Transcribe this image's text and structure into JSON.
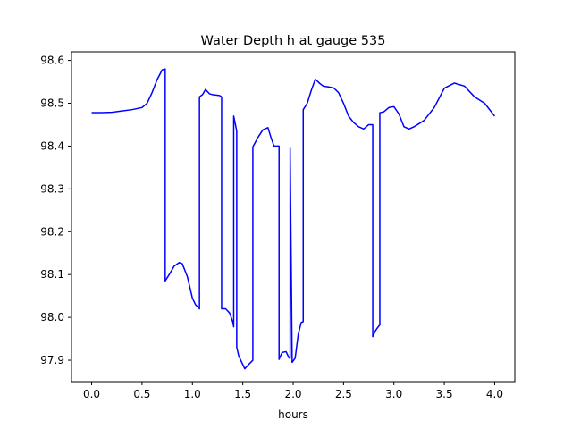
{
  "chart_data": {
    "type": "line",
    "title": "Water Depth h at gauge 535",
    "xlabel": "hours",
    "ylabel": "",
    "xlim": [
      -0.2,
      4.2
    ],
    "ylim": [
      97.85,
      98.62
    ],
    "x_ticks": [
      0.0,
      0.5,
      1.0,
      1.5,
      2.0,
      2.5,
      3.0,
      3.5,
      4.0
    ],
    "x_tick_labels": [
      "0.0",
      "0.5",
      "1.0",
      "1.5",
      "2.0",
      "2.5",
      "3.0",
      "3.5",
      "4.0"
    ],
    "y_ticks": [
      97.9,
      98.0,
      98.1,
      98.2,
      98.3,
      98.4,
      98.5,
      98.6
    ],
    "y_tick_labels": [
      "97.9",
      "98.0",
      "98.1",
      "98.2",
      "98.3",
      "98.4",
      "98.5",
      "98.6"
    ],
    "grid": false,
    "color": "#0000ff",
    "series": [
      {
        "x": [
          0.0,
          0.1,
          0.2,
          0.3,
          0.4,
          0.5,
          0.55,
          0.6,
          0.65,
          0.7,
          0.73,
          0.73,
          0.77,
          0.82,
          0.87,
          0.9,
          0.95,
          1.0,
          1.03,
          1.07,
          1.07,
          1.1,
          1.13,
          1.17,
          1.2,
          1.27,
          1.29,
          1.29,
          1.33,
          1.37,
          1.4,
          1.41,
          1.41,
          1.44,
          1.44,
          1.46,
          1.49,
          1.52,
          1.55,
          1.6,
          1.6,
          1.65,
          1.7,
          1.75,
          1.78,
          1.81,
          1.84,
          1.86,
          1.86,
          1.89,
          1.93,
          1.96,
          1.97,
          1.97,
          1.99,
          2.02,
          2.05,
          2.08,
          2.1,
          2.1,
          2.14,
          2.18,
          2.22,
          2.27,
          2.3,
          2.35,
          2.4,
          2.45,
          2.5,
          2.55,
          2.6,
          2.65,
          2.7,
          2.75,
          2.78,
          2.79,
          2.79,
          2.82,
          2.85,
          2.86,
          2.86,
          2.9,
          2.95,
          3.0,
          3.05,
          3.1,
          3.15,
          3.2,
          3.3,
          3.4,
          3.5,
          3.6,
          3.7,
          3.8,
          3.9,
          4.0
        ],
        "y": [
          98.478,
          98.478,
          98.479,
          98.482,
          98.485,
          98.49,
          98.5,
          98.525,
          98.555,
          98.578,
          98.58,
          98.085,
          98.1,
          98.12,
          98.128,
          98.125,
          98.095,
          98.045,
          98.03,
          98.02,
          98.515,
          98.52,
          98.532,
          98.522,
          98.52,
          98.518,
          98.515,
          98.02,
          98.02,
          98.01,
          97.99,
          97.978,
          98.47,
          98.435,
          97.93,
          97.91,
          97.895,
          97.88,
          97.888,
          97.9,
          98.398,
          98.42,
          98.438,
          98.443,
          98.42,
          98.4,
          98.4,
          98.4,
          97.902,
          97.918,
          97.92,
          97.905,
          97.905,
          98.395,
          97.895,
          97.905,
          97.96,
          97.988,
          97.99,
          98.485,
          98.5,
          98.53,
          98.556,
          98.545,
          98.54,
          98.538,
          98.536,
          98.525,
          98.5,
          98.47,
          98.455,
          98.445,
          98.44,
          98.45,
          98.45,
          98.45,
          97.955,
          97.97,
          97.98,
          97.982,
          98.478,
          98.48,
          98.49,
          98.492,
          98.475,
          98.445,
          98.44,
          98.445,
          98.46,
          98.49,
          98.535,
          98.547,
          98.54,
          98.515,
          98.5,
          98.47
        ]
      }
    ]
  }
}
